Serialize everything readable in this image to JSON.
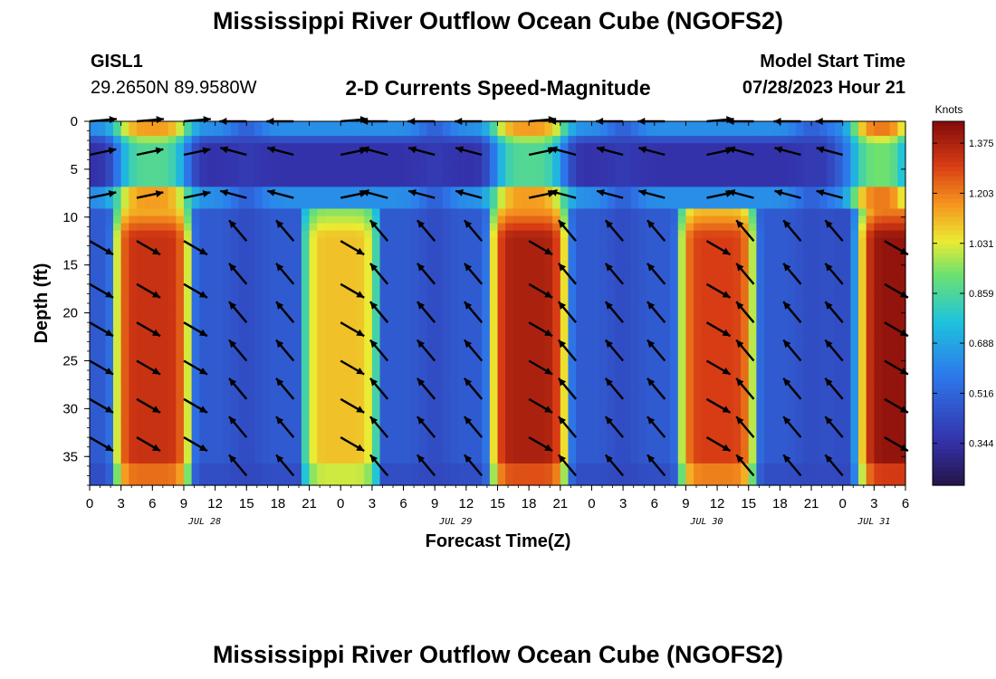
{
  "header": {
    "title": "Mississippi River Outflow Ocean Cube (NGOFS2)",
    "station": "GISL1",
    "coords": "29.2650N  89.9580W",
    "subtitle": "2-D Currents Speed-Magnitude",
    "start_label": "Model Start Time",
    "start_value": "07/28/2023 Hour 21"
  },
  "footer": {
    "title": "Mississippi River Outflow Ocean Cube (NGOFS2)"
  },
  "chart_data": {
    "type": "heatmap",
    "title": "2-D Currents Speed-Magnitude",
    "xlabel": "Forecast Time(Z)",
    "ylabel": "Depth (ft)",
    "xlim": [
      0,
      78
    ],
    "ylim": [
      0,
      38
    ],
    "x_ticks": [
      0,
      3,
      6,
      9,
      12,
      15,
      18,
      21,
      24,
      27,
      30,
      33,
      36,
      39,
      42,
      45,
      48,
      51,
      54,
      57,
      60,
      63,
      66,
      69,
      72,
      75,
      78
    ],
    "x_tick_labels": [
      "0",
      "3",
      "6",
      "9",
      "12",
      "15",
      "18",
      "21",
      "0",
      "3",
      "6",
      "9",
      "12",
      "15",
      "18",
      "21",
      "0",
      "3",
      "6",
      "9",
      "12",
      "15",
      "18",
      "21",
      "0",
      "3",
      "6"
    ],
    "date_labels": [
      {
        "text": "JUL 28",
        "x": 11
      },
      {
        "text": "JUL 29",
        "x": 35
      },
      {
        "text": "JUL 30",
        "x": 59
      },
      {
        "text": "JUL 31",
        "x": 75
      }
    ],
    "y_ticks": [
      0,
      5,
      10,
      15,
      20,
      25,
      30,
      35
    ],
    "colorbar": {
      "unit": "Knots",
      "min": 0.2,
      "max": 1.45,
      "ticks": [
        "1.375",
        "1.203",
        "1.031",
        "0.859",
        "0.688",
        "0.516",
        "0.344"
      ],
      "tick_values": [
        1.375,
        1.203,
        1.031,
        0.859,
        0.688,
        0.516,
        0.344
      ]
    },
    "bottom_lobes": [
      {
        "center": 6,
        "peak": 1.33
      },
      {
        "center": 24,
        "peak": 1.1
      },
      {
        "center": 42,
        "peak": 1.38
      },
      {
        "center": 60,
        "peak": 1.3
      },
      {
        "center": 77,
        "peak": 1.42
      }
    ],
    "slack_times": [
      15,
      33,
      51,
      69,
      72
    ],
    "surface_lobes": [
      {
        "center": 6,
        "peak": 0.95
      },
      {
        "center": 42,
        "peak": 0.95
      },
      {
        "center": 75,
        "peak": 1.05
      }
    ],
    "arrow_times": [
      0,
      4.5,
      9,
      15,
      19.5,
      24,
      28.5,
      33,
      37.5,
      42,
      46.5,
      51,
      55,
      59,
      63.5,
      68,
      72,
      76
    ],
    "arrow_depths": [
      0,
      3.5,
      8,
      12.5,
      17,
      21,
      25,
      29,
      33,
      37
    ]
  }
}
